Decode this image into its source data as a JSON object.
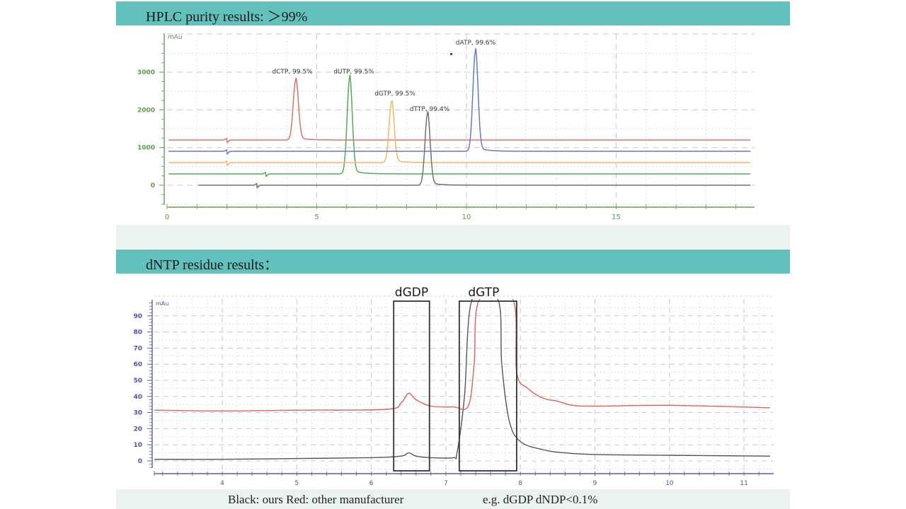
{
  "sections": {
    "purity": {
      "title": "HPLC purity results: ＞99%"
    },
    "residue": {
      "title": "dNTP residue results："
    }
  },
  "caption": {
    "legend_text": "Black: ours   Red: other manufacturer",
    "note_text": "e.g. dGDP dNDP<0.1%"
  },
  "chart_data": [
    {
      "type": "line",
      "title": "HPLC purity results: >99%",
      "xlabel": "",
      "ylabel": "mAu",
      "xlim": [
        0,
        19.5
      ],
      "ylim": [
        -600,
        4000
      ],
      "x_ticks": [
        0,
        5,
        10,
        15
      ],
      "y_ticks": [
        0,
        1000,
        2000,
        3000
      ],
      "grid": true,
      "colors": {
        "axis": "#7aaa6a",
        "tick_label": "#5c9a4c"
      },
      "series": [
        {
          "name": "dCTP",
          "color": "#e0706a",
          "baseline": 1200,
          "peak_x": 4.3,
          "peak_y": 2800,
          "label": "dCTP, 99.5%"
        },
        {
          "name": "dUTP",
          "color": "#5aa85a",
          "baseline": 300,
          "peak_x": 6.1,
          "peak_y": 2850,
          "label": "dUTP, 99.5%"
        },
        {
          "name": "dGTP",
          "color": "#f5b766",
          "baseline": 600,
          "peak_x": 7.5,
          "peak_y": 2200,
          "label": "dGTP, 99.5%"
        },
        {
          "name": "dTTP",
          "color": "#707070",
          "baseline": 0,
          "peak_x": 8.7,
          "peak_y": 1900,
          "label": "dTTP, 99.4%"
        },
        {
          "name": "dATP",
          "color": "#6878c8",
          "baseline": 900,
          "peak_x": 10.3,
          "peak_y": 3550,
          "label": "dATP, 99.6%"
        }
      ]
    },
    {
      "type": "line",
      "title": "dNTP residue results:",
      "xlabel": "",
      "ylabel": "mAu",
      "xlim": [
        3.05,
        11.35
      ],
      "ylim": [
        -5,
        100
      ],
      "x_ticks": [
        4,
        5,
        6,
        7,
        8,
        9,
        10,
        11
      ],
      "y_ticks": [
        0,
        10,
        20,
        30,
        40,
        50,
        60,
        70,
        80,
        90
      ],
      "grid": true,
      "colors": {
        "axis": "#5a62a8",
        "tick_label": "#4a56a0"
      },
      "annotations": [
        {
          "label": "dGDP",
          "x_range": [
            6.3,
            6.78
          ]
        },
        {
          "label": "dGTP",
          "x_range": [
            7.18,
            7.95
          ]
        }
      ],
      "series": [
        {
          "name": "Black: ours",
          "color": "#555555",
          "points": [
            [
              3.05,
              1
            ],
            [
              4,
              1
            ],
            [
              5,
              1.5
            ],
            [
              6,
              2
            ],
            [
              6.4,
              3
            ],
            [
              6.5,
              5
            ],
            [
              6.6,
              3
            ],
            [
              6.8,
              2
            ],
            [
              7.1,
              2
            ],
            [
              7.15,
              5
            ],
            [
              7.25,
              40
            ],
            [
              7.35,
              100
            ],
            [
              7.7,
              100
            ],
            [
              7.75,
              60
            ],
            [
              7.85,
              25
            ],
            [
              8.0,
              12
            ],
            [
              8.3,
              7
            ],
            [
              8.6,
              5
            ],
            [
              9,
              4
            ],
            [
              10,
              3.5
            ],
            [
              11.35,
              3
            ]
          ]
        },
        {
          "name": "Red: other manufacturer",
          "color": "#e06060",
          "points": [
            [
              3.05,
              31.5
            ],
            [
              4,
              31
            ],
            [
              5,
              31.5
            ],
            [
              6.2,
              32
            ],
            [
              6.4,
              36
            ],
            [
              6.5,
              42
            ],
            [
              6.6,
              38
            ],
            [
              6.8,
              34
            ],
            [
              7.1,
              33.5
            ],
            [
              7.3,
              34
            ],
            [
              7.38,
              60
            ],
            [
              7.45,
              100
            ],
            [
              7.9,
              100
            ],
            [
              7.95,
              55
            ],
            [
              8.1,
              45
            ],
            [
              8.3,
              39
            ],
            [
              8.5,
              37
            ],
            [
              8.7,
              34.5
            ],
            [
              9,
              34
            ],
            [
              10,
              34.5
            ],
            [
              11.35,
              33
            ]
          ]
        }
      ]
    }
  ]
}
